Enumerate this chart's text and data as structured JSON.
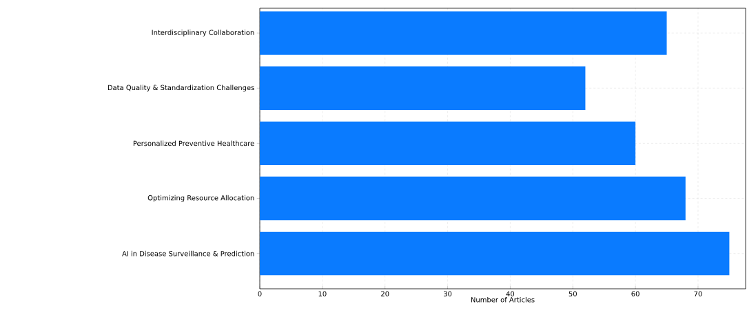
{
  "chart_data": {
    "type": "bar",
    "orientation": "horizontal",
    "xlabel": "Number of Articles",
    "categories": [
      "Interdisciplinary Collaboration",
      "Data Quality & Standardization Challenges",
      "Personalized Preventive Healthcare",
      "Optimizing Resource Allocation",
      "AI in Disease Surveillance & Prediction"
    ],
    "values": [
      65,
      52,
      60,
      68,
      75
    ],
    "color": "#0a7bff",
    "xlim": [
      0,
      77.6
    ],
    "xticks": [
      0,
      10,
      20,
      30,
      40,
      50,
      60,
      70
    ],
    "grid": true
  }
}
